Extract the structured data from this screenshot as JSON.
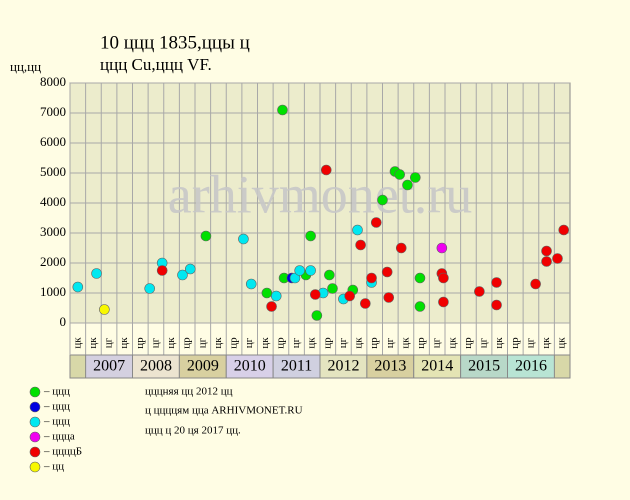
{
  "chart_data": {
    "type": "scatter",
    "title": "10 ццц 1835,ццы ц",
    "subtitle": "ццц Cu,ццц VF.",
    "y_label": "цц,цц",
    "watermark": "arhivmonet.ru",
    "notes": [
      "цццняя цц 2012 цц",
      "ц ццццям цца ARHIVMONET.RU",
      "ццц ц 20 ця 2017 цц."
    ],
    "categories": [
      "цк",
      "цк",
      "цг",
      "цк",
      "цр",
      "цг",
      "цк",
      "цр",
      "цг",
      "цк",
      "цр",
      "цг",
      "цк",
      "цр",
      "цг",
      "цк",
      "цр",
      "цг",
      "цк",
      "цр",
      "цг",
      "цк",
      "цр",
      "цг",
      "цк",
      "цр",
      "цг",
      "цк",
      "цр",
      "цг",
      "цк",
      "цк"
    ],
    "years": [
      "2007",
      "2008",
      "2009",
      "2010",
      "2011",
      "2012",
      "2013",
      "2014",
      "2015",
      "2016"
    ],
    "year_colors": [
      "#d4d0e0",
      "#ece4d0",
      "#d8d0a0",
      "#d8d0e8",
      "#d0d0e0",
      "#e4e4c0",
      "#d8d0a0",
      "#e4e4b4",
      "#b8d8c8",
      "#b8e4d4"
    ],
    "xlim": [
      0,
      32
    ],
    "ylim": [
      0,
      8000
    ],
    "yticks": [
      0,
      1000,
      2000,
      3000,
      4000,
      5000,
      6000,
      7000,
      8000
    ],
    "grid": true,
    "series": [
      {
        "name": "– ццц",
        "color": "#00e000",
        "x": [
          13.6,
          13.7,
          12.6,
          15.4,
          15.8,
          15.1,
          16.6,
          16.8,
          18.1,
          20.0,
          20.8,
          21.1,
          21.6,
          22.1,
          22.4,
          22.4,
          8.7
        ],
        "values": [
          7100,
          1500,
          1000,
          2900,
          250,
          1600,
          1600,
          1150,
          1100,
          4100,
          5050,
          4950,
          4600,
          4850,
          1500,
          550,
          2900
        ]
      },
      {
        "name": "– ццц",
        "color": "#0000e0",
        "x": [
          14.2
        ],
        "values": [
          1500
        ]
      },
      {
        "name": "– ццц",
        "color": "#00e8f0",
        "x": [
          0.5,
          1.7,
          5.1,
          5.9,
          7.2,
          7.7,
          11.1,
          11.6,
          13.2,
          14.4,
          14.7,
          15.4,
          16.2,
          17.5,
          18.4,
          19.3
        ],
        "values": [
          1200,
          1650,
          1150,
          2000,
          1600,
          1800,
          2800,
          1300,
          900,
          1500,
          1750,
          1750,
          1000,
          800,
          3100,
          1350
        ]
      },
      {
        "name": "– ццца",
        "color": "#f000f0",
        "x": [
          23.8
        ],
        "values": [
          2500
        ]
      },
      {
        "name": "– ццццБ",
        "color": "#f00000",
        "x": [
          5.9,
          12.9,
          15.7,
          16.4,
          17.9,
          18.6,
          18.9,
          19.3,
          19.6,
          20.3,
          20.4,
          21.2,
          23.8,
          23.9,
          23.9,
          26.2,
          27.3,
          27.3,
          29.8,
          30.5,
          30.5,
          31.2,
          31.6
        ],
        "values": [
          1750,
          550,
          950,
          5100,
          900,
          2600,
          650,
          1500,
          3350,
          1700,
          850,
          2500,
          1650,
          1500,
          700,
          1050,
          1350,
          600,
          1300,
          2400,
          2050,
          2150,
          3100
        ]
      },
      {
        "name": "– цц",
        "color": "#f8f800",
        "x": [
          2.2
        ],
        "values": [
          450
        ]
      }
    ]
  }
}
